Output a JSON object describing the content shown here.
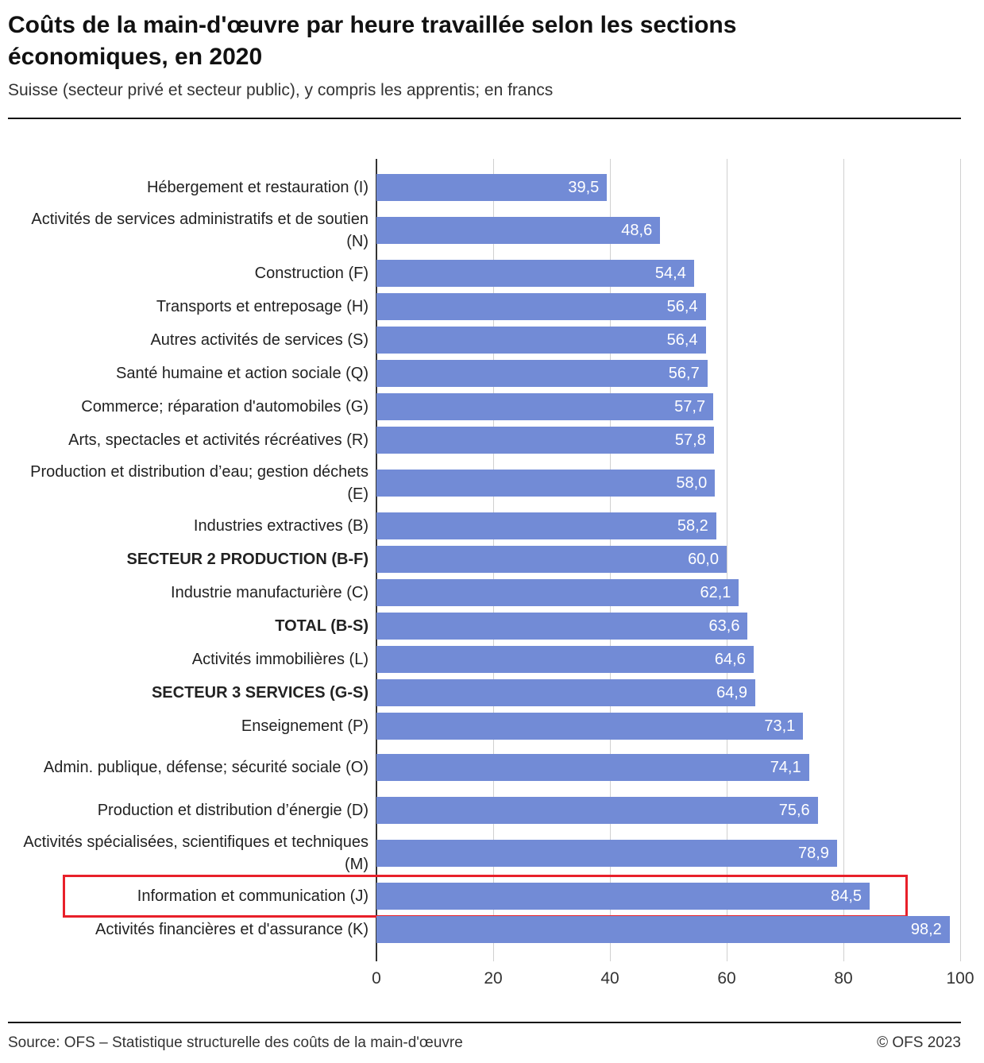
{
  "header": {
    "title": "Coûts de la main-d'œuvre par heure travaillée selon les sections économiques, en 2020",
    "subtitle": "Suisse (secteur privé et secteur public), y compris les apprentis; en francs"
  },
  "footer": {
    "source": "Source: OFS – Statistique structurelle des coûts de la main-d'œuvre",
    "copyright": "© OFS 2023"
  },
  "colors": {
    "bar": "#728bd6",
    "highlight": "#e8202a"
  },
  "chart_data": {
    "type": "bar",
    "orientation": "horizontal",
    "title": "",
    "xlabel": "",
    "ylabel": "",
    "xlim": [
      0,
      100
    ],
    "grid": true,
    "x_ticks": [
      "0",
      "20",
      "40",
      "60",
      "80",
      "100"
    ],
    "highlighted_category": "Information et communication (J)",
    "categories": [
      {
        "label": "Hébergement et restauration (I)",
        "value": 39.5,
        "value_label": "39,5",
        "bold": false
      },
      {
        "label": "Activités de services administratifs et de soutien (N)",
        "value": 48.6,
        "value_label": "48,6",
        "bold": false
      },
      {
        "label": "Construction (F)",
        "value": 54.4,
        "value_label": "54,4",
        "bold": false
      },
      {
        "label": "Transports et entreposage (H)",
        "value": 56.4,
        "value_label": "56,4",
        "bold": false
      },
      {
        "label": "Autres activités de services (S)",
        "value": 56.4,
        "value_label": "56,4",
        "bold": false
      },
      {
        "label": "Santé humaine et action sociale (Q)",
        "value": 56.7,
        "value_label": "56,7",
        "bold": false
      },
      {
        "label": "Commerce; réparation d'automobiles (G)",
        "value": 57.7,
        "value_label": "57,7",
        "bold": false
      },
      {
        "label": "Arts, spectacles et activités récréatives (R)",
        "value": 57.8,
        "value_label": "57,8",
        "bold": false
      },
      {
        "label": "Production et distribution d’eau; gestion déchets (E)",
        "value": 58.0,
        "value_label": "58,0",
        "bold": false
      },
      {
        "label": "Industries extractives (B)",
        "value": 58.2,
        "value_label": "58,2",
        "bold": false
      },
      {
        "label": "SECTEUR 2 PRODUCTION (B-F)",
        "value": 60.0,
        "value_label": "60,0",
        "bold": true
      },
      {
        "label": "Industrie manufacturière (C)",
        "value": 62.1,
        "value_label": "62,1",
        "bold": false
      },
      {
        "label": "TOTAL (B-S)",
        "value": 63.6,
        "value_label": "63,6",
        "bold": true
      },
      {
        "label": "Activités immobilières (L)",
        "value": 64.6,
        "value_label": "64,6",
        "bold": false
      },
      {
        "label": "SECTEUR 3 SERVICES (G-S)",
        "value": 64.9,
        "value_label": "64,9",
        "bold": true
      },
      {
        "label": "Enseignement (P)",
        "value": 73.1,
        "value_label": "73,1",
        "bold": false
      },
      {
        "label": "Admin. publique, défense; sécurité sociale (O)",
        "value": 74.1,
        "value_label": "74,1",
        "bold": false
      },
      {
        "label": "Production et distribution d’énergie (D)",
        "value": 75.6,
        "value_label": "75,6",
        "bold": false
      },
      {
        "label": "Activités spécialisées, scientifiques et techniques (M)",
        "value": 78.9,
        "value_label": "78,9",
        "bold": false
      },
      {
        "label": "Information et communication (J)",
        "value": 84.5,
        "value_label": "84,5",
        "bold": false
      },
      {
        "label": "Activités financières et d'assurance (K)",
        "value": 98.2,
        "value_label": "98,2",
        "bold": false
      }
    ]
  }
}
